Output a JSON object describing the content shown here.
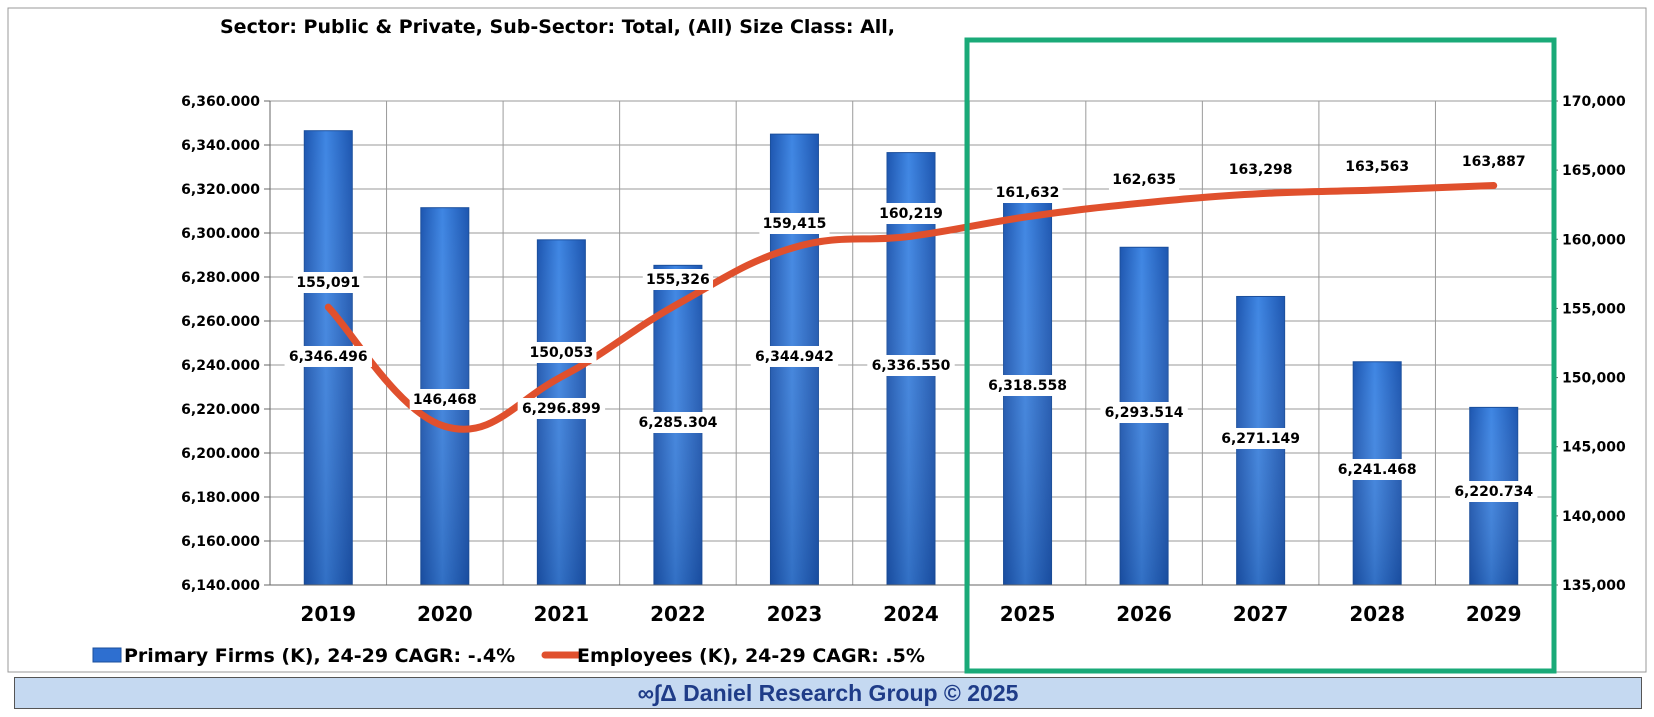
{
  "chart_data": {
    "type": "bar",
    "title": "Sector: Public & Private, Sub-Sector: Total, (All) Size Class: All,",
    "categories": [
      "2019",
      "2020",
      "2021",
      "2022",
      "2023",
      "2024",
      "2025",
      "2026",
      "2027",
      "2028",
      "2029"
    ],
    "series": [
      {
        "name": "Primary Firms (K), 24-29 CAGR: -.4%",
        "type": "bar",
        "axis": "left",
        "color": "#2e6fd0",
        "values": [
          6346.496,
          6311.5,
          6296.899,
          6285.304,
          6344.942,
          6336.55,
          6318.558,
          6293.514,
          6271.149,
          6241.468,
          6220.734
        ],
        "labels": [
          "6,346.496",
          "",
          "6,296.899",
          "6,285.304",
          "6,344.942",
          "6,336.550",
          "6,318.558",
          "6,293.514",
          "6,271.149",
          "6,241.468",
          "6,220.734"
        ]
      },
      {
        "name": "Employees (K), 24-29 CAGR: .5%",
        "type": "line",
        "axis": "right",
        "color": "#e0502d",
        "values": [
          155091,
          146468,
          150053,
          155326,
          159415,
          160219,
          161632,
          162635,
          163298,
          163563,
          163887
        ],
        "labels": [
          "155,091",
          "146,468",
          "150,053",
          "155,326",
          "159,415",
          "160,219",
          "161,632",
          "162,635",
          "163,298",
          "163,563",
          "163,887"
        ]
      }
    ],
    "y_left": {
      "min": 6140,
      "max": 6360,
      "ticks": [
        6360,
        6340,
        6320,
        6300,
        6280,
        6260,
        6240,
        6220,
        6200,
        6180,
        6160,
        6140
      ],
      "tick_labels": [
        "6,360.000",
        "6,340.000",
        "6,320.000",
        "6,300.000",
        "6,280.000",
        "6,260.000",
        "6,240.000",
        "6,220.000",
        "6,200.000",
        "6,180.000",
        "6,160.000",
        "6,140.000"
      ]
    },
    "y_right": {
      "min": 135000,
      "max": 170000,
      "ticks": [
        170000,
        165000,
        160000,
        155000,
        150000,
        145000,
        140000,
        135000
      ],
      "tick_labels": [
        "170,000",
        "165,000",
        "160,000",
        "155,000",
        "150,000",
        "145,000",
        "140,000",
        "135,000"
      ]
    },
    "grid": true,
    "legend_position": "bottom-left",
    "highlight": {
      "from": "2025",
      "to": "2029",
      "color": "#1aaa78"
    }
  },
  "footer": {
    "text": "∞∫Δ Daniel Research Group © 2025"
  }
}
